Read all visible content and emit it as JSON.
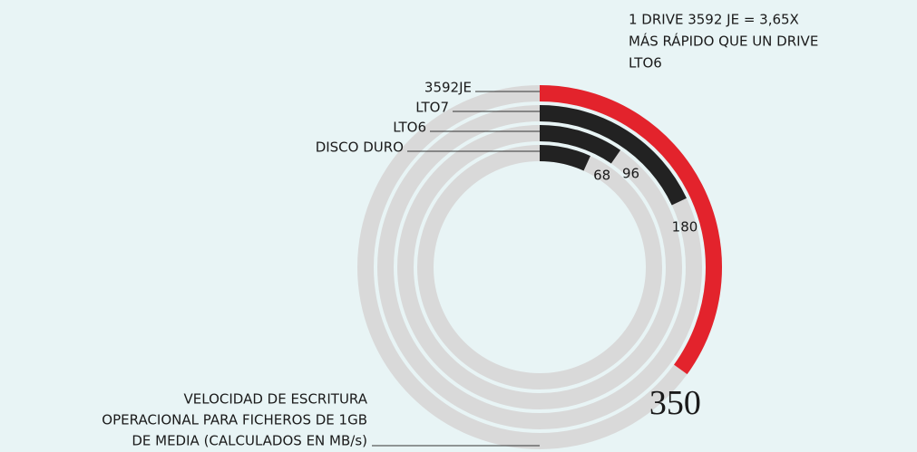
{
  "chart_data": {
    "type": "radial_bar",
    "annotation": [
      "1 DRIVE 3592 JE = 3,65X",
      "MÁS RÁPIDO QUE UN DRIVE",
      "LTO6"
    ],
    "note": [
      "VELOCIDAD DE ESCRITURA",
      "OPERACIONAL PARA FICHEROS DE 1GB",
      "DE MEDIA (CALCULADOS EN MB/s)"
    ],
    "categories": [
      "3592JE",
      "LTO7",
      "LTO6",
      "DISCO DURO"
    ],
    "values": [
      350,
      180,
      96,
      68
    ],
    "colors": [
      "#e3232c",
      "#222222",
      "#222222",
      "#222222"
    ],
    "track_color": "#d9d9d9",
    "rlim": [
      0,
      1000
    ]
  }
}
